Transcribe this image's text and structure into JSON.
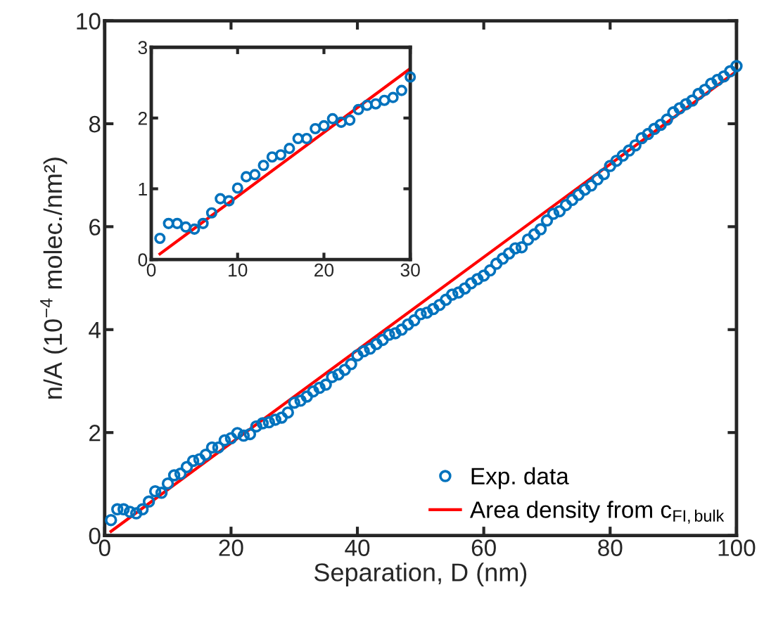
{
  "chart_data": [
    {
      "type": "scatter",
      "xlabel": "Separation, D (nm)",
      "ylabel": "n/A (10$^{−4}$ molec./nm²)",
      "xlim": [
        0,
        100
      ],
      "ylim": [
        0,
        10
      ],
      "xticks": [
        0,
        20,
        40,
        60,
        80,
        100
      ],
      "yticks": [
        0,
        2,
        4,
        6,
        8,
        10
      ],
      "legend": "bottom right",
      "grid": false,
      "series": [
        {
          "name": "Exp. data",
          "marker": "circle",
          "color": "#0072bd",
          "x": [
            1,
            2,
            3,
            4,
            5,
            6,
            7,
            8,
            9,
            10,
            11,
            12,
            13,
            14,
            15,
            16,
            17,
            18,
            19,
            20,
            21,
            22,
            23,
            24,
            25,
            26,
            27,
            28,
            29,
            30,
            31,
            32,
            33,
            34,
            35,
            36,
            37,
            38,
            39,
            40,
            41,
            42,
            43,
            44,
            45,
            46,
            47,
            48,
            49,
            50,
            51,
            52,
            53,
            54,
            55,
            56,
            57,
            58,
            59,
            60,
            61,
            62,
            63,
            64,
            65,
            66,
            67,
            68,
            69,
            70,
            71,
            72,
            73,
            74,
            75,
            76,
            77,
            78,
            79,
            80,
            81,
            82,
            83,
            84,
            85,
            86,
            87,
            88,
            89,
            90,
            91,
            92,
            93,
            94,
            95,
            96,
            97,
            98,
            99,
            100
          ],
          "values": [
            0.3,
            0.51,
            0.51,
            0.46,
            0.43,
            0.51,
            0.66,
            0.86,
            0.83,
            1.01,
            1.17,
            1.2,
            1.33,
            1.45,
            1.48,
            1.57,
            1.71,
            1.71,
            1.85,
            1.89,
            1.99,
            1.94,
            1.97,
            2.12,
            2.18,
            2.2,
            2.25,
            2.29,
            2.39,
            2.58,
            2.62,
            2.7,
            2.8,
            2.87,
            2.93,
            3.08,
            3.13,
            3.22,
            3.33,
            3.5,
            3.58,
            3.63,
            3.72,
            3.8,
            3.9,
            3.93,
            4.0,
            4.1,
            4.18,
            4.3,
            4.33,
            4.4,
            4.48,
            4.58,
            4.68,
            4.72,
            4.8,
            4.9,
            4.98,
            5.05,
            5.15,
            5.28,
            5.38,
            5.48,
            5.58,
            5.6,
            5.75,
            5.85,
            5.95,
            6.12,
            6.25,
            6.3,
            6.42,
            6.52,
            6.62,
            6.72,
            6.8,
            6.92,
            7.02,
            7.18,
            7.28,
            7.38,
            7.48,
            7.58,
            7.72,
            7.8,
            7.9,
            7.98,
            8.08,
            8.22,
            8.3,
            8.38,
            8.45,
            8.58,
            8.66,
            8.78,
            8.85,
            8.92,
            9.02,
            9.12
          ]
        },
        {
          "name": "Area density from c$_{FI,bulk}$",
          "type": "line",
          "color": "#ff0000",
          "x": [
            1,
            100
          ],
          "values": [
            0.08,
            9.02
          ]
        }
      ]
    },
    {
      "type": "scatter",
      "xlim": [
        0,
        30
      ],
      "ylim": [
        0,
        3
      ],
      "xticks": [
        0,
        10,
        20,
        30
      ],
      "yticks": [
        0,
        1,
        2,
        3
      ],
      "grid": false,
      "series": [
        {
          "marker": "circle",
          "color": "#0072bd",
          "x": [
            1,
            2,
            3,
            4,
            5,
            6,
            7,
            8,
            9,
            10,
            11,
            12,
            13,
            14,
            15,
            16,
            17,
            18,
            19,
            20,
            21,
            22,
            23,
            24,
            25,
            26,
            27,
            28,
            29,
            30
          ],
          "values": [
            0.3,
            0.51,
            0.51,
            0.46,
            0.43,
            0.51,
            0.66,
            0.86,
            0.83,
            1.01,
            1.17,
            1.2,
            1.33,
            1.45,
            1.48,
            1.57,
            1.71,
            1.71,
            1.85,
            1.89,
            1.99,
            1.94,
            1.97,
            2.12,
            2.18,
            2.2,
            2.25,
            2.29,
            2.39,
            2.58
          ]
        },
        {
          "type": "line",
          "color": "#ff0000",
          "x": [
            1,
            30
          ],
          "values": [
            0.08,
            2.7
          ]
        }
      ]
    }
  ]
}
